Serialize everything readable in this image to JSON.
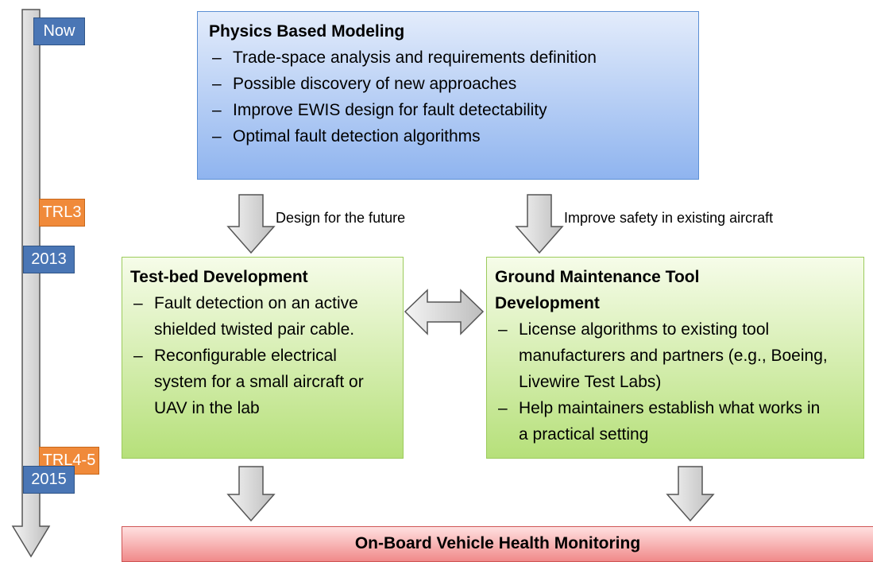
{
  "timeline": {
    "labels": [
      "Now",
      "TRL3",
      "2013",
      "TRL4-5",
      "2015"
    ]
  },
  "physics_box": {
    "title": "Physics Based Modeling",
    "bullets": [
      "Trade-space analysis  and requirements definition",
      "Possible discovery of new approaches",
      "Improve EWIS design for fault detectability",
      "Optimal fault detection algorithms"
    ]
  },
  "arrow_labels": [
    "Design for the future",
    "Improve safety in existing aircraft"
  ],
  "testbed_box": {
    "title": "Test-bed Development",
    "bullets": [
      "Fault detection on an active shielded twisted pair cable.",
      "Reconfigurable electrical system for a small aircraft or UAV in the lab"
    ]
  },
  "ground_box": {
    "title": "Ground Maintenance Tool Development",
    "bullets": [
      "License algorithms to existing tool manufacturers and partners (e.g., Boeing, Livewire Test Labs)",
      "Help maintainers establish what works in a practical setting"
    ]
  },
  "bottom_box": {
    "title": "On-Board Vehicle Health Monitoring"
  }
}
